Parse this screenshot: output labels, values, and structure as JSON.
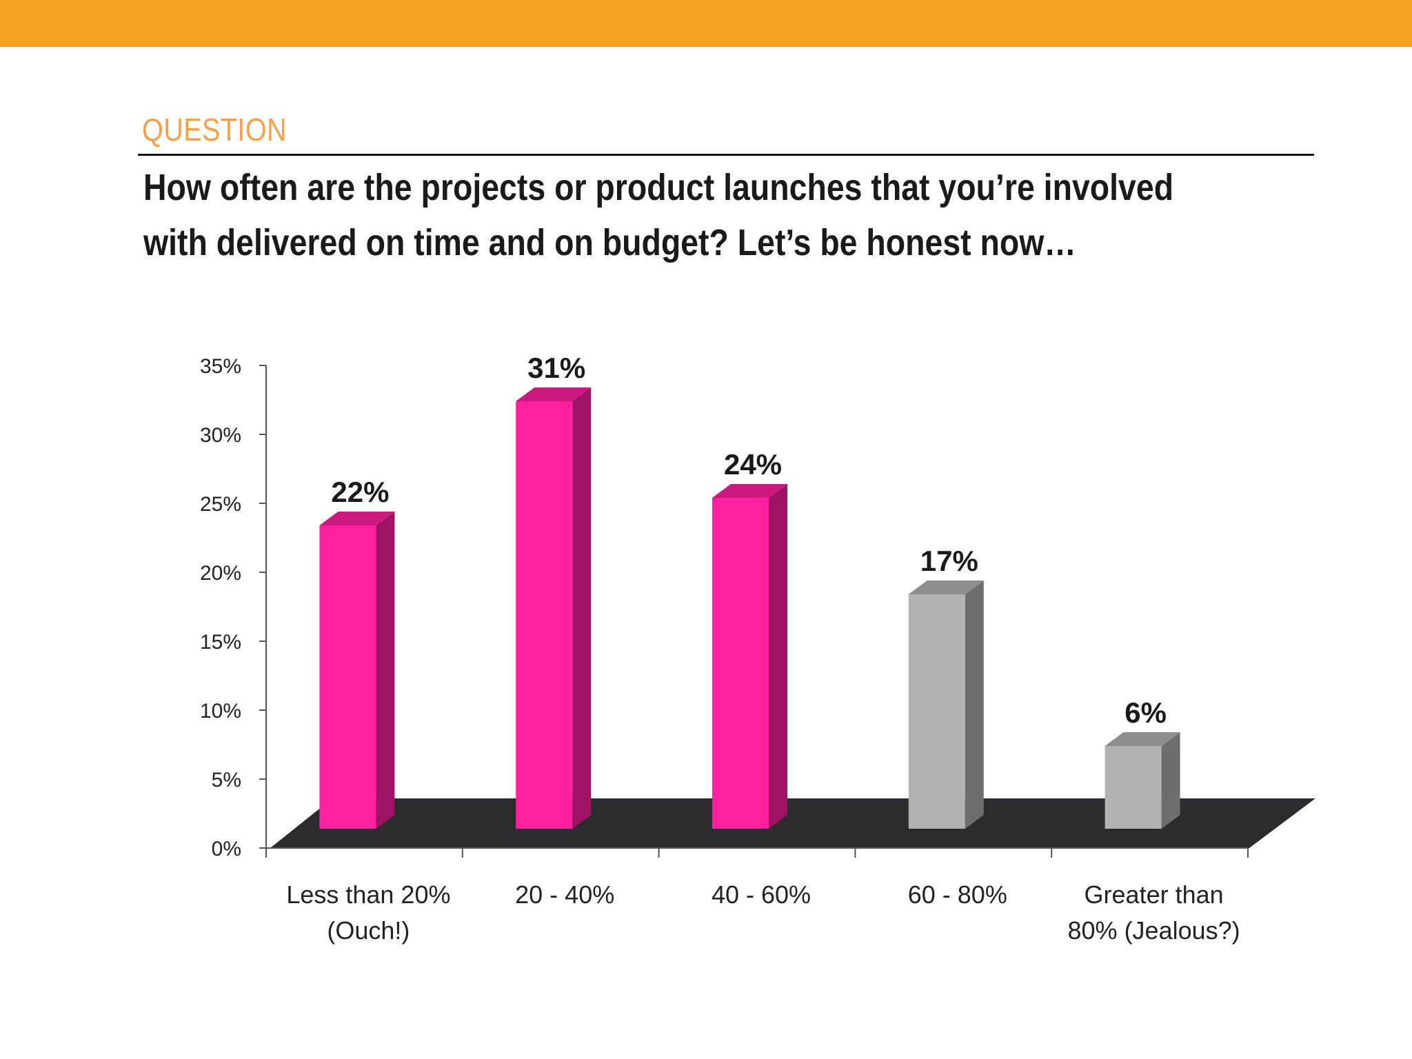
{
  "header": {
    "accent_color": "#f6a11f",
    "section_label": "QUESTION",
    "question_line_1": "How often are the projects or product launches that you’re involved",
    "question_line_2": "with delivered on time and on budget?  Let’s be honest now…"
  },
  "chart_data": {
    "type": "bar",
    "title": "",
    "xlabel": "",
    "ylabel": "",
    "ylim": [
      0,
      35
    ],
    "y_ticks": [
      "0%",
      "5%",
      "10%",
      "15%",
      "20%",
      "25%",
      "30%",
      "35%"
    ],
    "y_tick_values": [
      0,
      5,
      10,
      15,
      20,
      25,
      30,
      35
    ],
    "categories": [
      [
        "Less than 20%",
        "(Ouch!)"
      ],
      [
        "20 - 40%"
      ],
      [
        "40 - 60%"
      ],
      [
        "60 - 80%"
      ],
      [
        "Greater than",
        "80% (Jealous?)"
      ]
    ],
    "values": [
      22,
      31,
      24,
      17,
      6
    ],
    "data_labels": [
      "22%",
      "31%",
      "24%",
      "17%",
      "6%"
    ],
    "bar_colors": [
      "#ff1fa0",
      "#ff1fa0",
      "#ff1fa0",
      "#b2b1b3",
      "#b2b1b3"
    ],
    "floor_color": "#2d2b2d",
    "grid": false,
    "legend": "none",
    "style": "3d"
  }
}
